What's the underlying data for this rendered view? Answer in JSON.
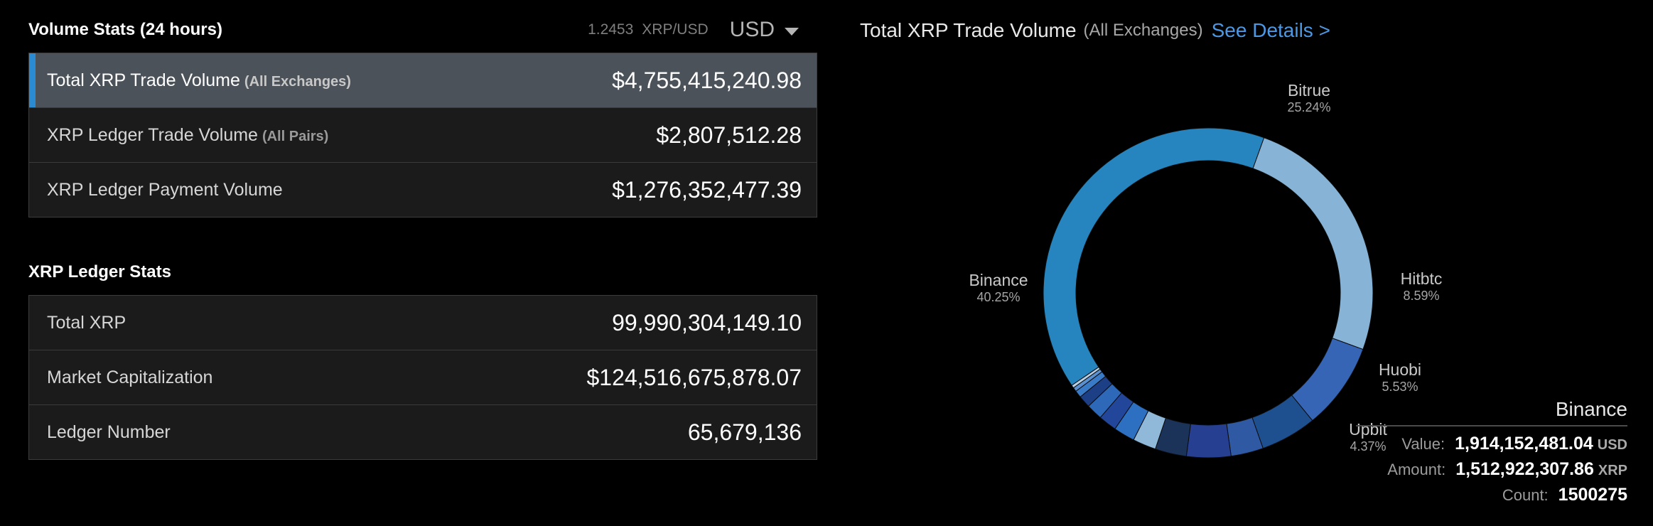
{
  "volume_stats": {
    "title": "Volume Stats (24 hours)",
    "rate_value": "1.2453",
    "rate_unit": "XRP/USD",
    "currency": "USD",
    "rows": [
      {
        "label": "Total XRP Trade Volume",
        "sub": "(All Exchanges)",
        "value": "$4,755,415,240.98"
      },
      {
        "label": "XRP Ledger Trade Volume",
        "sub": "(All Pairs)",
        "value": "$2,807,512.28"
      },
      {
        "label": "XRP Ledger Payment Volume",
        "sub": "",
        "value": "$1,276,352,477.39"
      }
    ]
  },
  "ledger_stats": {
    "title": "XRP Ledger Stats",
    "rows": [
      {
        "label": "Total XRP",
        "value": "99,990,304,149.10"
      },
      {
        "label": "Market Capitalization",
        "value": "$124,516,675,878.07"
      },
      {
        "label": "Ledger Number",
        "value": "65,679,136"
      }
    ]
  },
  "chart_header": {
    "title": "Total XRP Trade Volume",
    "subtitle": "(All Exchanges)",
    "link": "See Details >"
  },
  "tooltip": {
    "title": "Binance",
    "value_label": "Value:",
    "value": "1,914,152,481.04",
    "value_unit": "USD",
    "amount_label": "Amount:",
    "amount": "1,512,922,307.86",
    "amount_unit": "XRP",
    "count_label": "Count:",
    "count": "1500275"
  },
  "chart_data": {
    "type": "pie",
    "donut": true,
    "slices": [
      {
        "name": "Bitrue",
        "label": "25.24%",
        "value": 25.24,
        "color": "#86b3d6"
      },
      {
        "name": "Hitbtc",
        "label": "8.59%",
        "value": 8.59,
        "color": "#3565b4"
      },
      {
        "name": "Huobi",
        "label": "5.53%",
        "value": 5.53,
        "color": "#1e4f8e"
      },
      {
        "name": "",
        "label": "",
        "value": 3.2,
        "color": "#2f5aa3"
      },
      {
        "name": "Upbit",
        "label": "4.37%",
        "value": 4.37,
        "color": "#263f91"
      },
      {
        "name": "",
        "label": "",
        "value": 3.1,
        "color": "#1b3359"
      },
      {
        "name": "",
        "label": "",
        "value": 2.3,
        "color": "#8fb8d9"
      },
      {
        "name": "",
        "label": "",
        "value": 2.1,
        "color": "#2d6fc0"
      },
      {
        "name": "",
        "label": "",
        "value": 1.8,
        "color": "#22469a"
      },
      {
        "name": "",
        "label": "",
        "value": 1.6,
        "color": "#2e68b8"
      },
      {
        "name": "",
        "label": "",
        "value": 1.2,
        "color": "#1d3f86"
      },
      {
        "name": "",
        "label": "",
        "value": 0.7,
        "color": "#3a7bc8"
      },
      {
        "name": "",
        "label": "",
        "value": 0.4,
        "color": "#5a90cf"
      },
      {
        "name": "",
        "label": "",
        "value": 0.3,
        "color": "#b7d0e6"
      },
      {
        "name": "Binance",
        "label": "40.25%",
        "value": 40.25,
        "color": "#2685bf"
      }
    ]
  }
}
